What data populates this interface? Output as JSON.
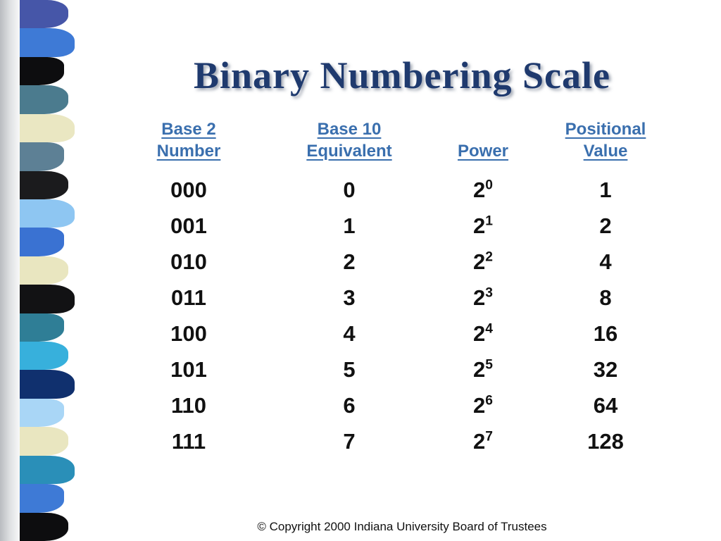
{
  "slide": {
    "title": "Binary Numbering Scale",
    "footer": "© Copyright 2000 Indiana University Board of Trustees"
  },
  "table": {
    "headers": [
      {
        "line1": "Base 2",
        "line2": "Number"
      },
      {
        "line1": "Base 10",
        "line2": "Equivalent"
      },
      {
        "line1": "Power",
        "line2": ""
      },
      {
        "line1": "Positional",
        "line2": "Value"
      }
    ],
    "rows": [
      {
        "base2": "000",
        "base10": "0",
        "power_base": "2",
        "power_exp": "0",
        "value": "1"
      },
      {
        "base2": "001",
        "base10": "1",
        "power_base": "2",
        "power_exp": "1",
        "value": "2"
      },
      {
        "base2": "010",
        "base10": "2",
        "power_base": "2",
        "power_exp": "2",
        "value": "4"
      },
      {
        "base2": "011",
        "base10": "3",
        "power_base": "2",
        "power_exp": "3",
        "value": "8"
      },
      {
        "base2": "100",
        "base10": "4",
        "power_base": "2",
        "power_exp": "4",
        "value": "16"
      },
      {
        "base2": "101",
        "base10": "5",
        "power_base": "2",
        "power_exp": "5",
        "value": "32"
      },
      {
        "base2": "110",
        "base10": "6",
        "power_base": "2",
        "power_exp": "6",
        "value": "64"
      },
      {
        "base2": "111",
        "base10": "7",
        "power_base": "2",
        "power_exp": "7",
        "value": "128"
      }
    ]
  },
  "colors": {
    "title": "#1f3a6e",
    "header": "#3a6fae",
    "body_text": "#111111",
    "strip": [
      "#4656a8",
      "#3e7ad6",
      "#0d0d0f",
      "#4b7b8e",
      "#eae7c2",
      "#5d8095",
      "#1b1b1d",
      "#8ec6f2",
      "#3a72d2",
      "#e9e6c0",
      "#121214",
      "#2f7e96",
      "#37b0dc",
      "#10306e",
      "#a9d6f6",
      "#e9e6c0",
      "#2a8fb8",
      "#3e7ad6",
      "#0d0d0f"
    ]
  }
}
